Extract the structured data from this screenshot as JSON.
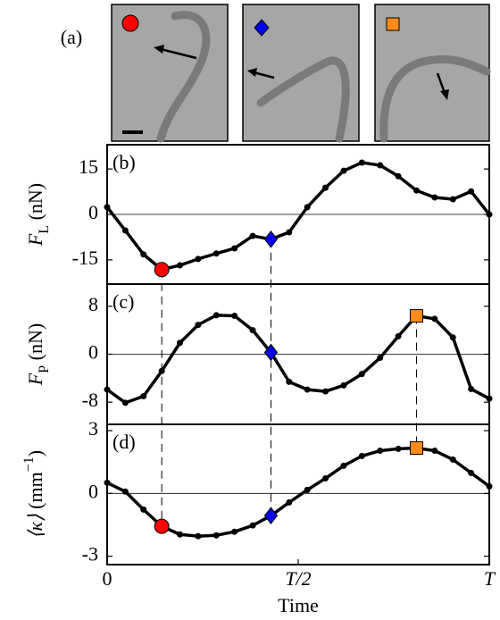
{
  "panel_a": {
    "label": "(a)"
  },
  "chart_data": [
    {
      "type": "line",
      "panel_label": "(b)",
      "color": "#000000",
      "ylabel": [
        {
          "text": "F",
          "style": "italic"
        },
        {
          "text": "L",
          "style": "sub"
        },
        {
          "text": " (nN)",
          "style": "normal"
        }
      ],
      "x": [
        0,
        0.0476,
        0.0952,
        0.1429,
        0.1905,
        0.2381,
        0.2857,
        0.3333,
        0.381,
        0.4286,
        0.4762,
        0.5238,
        0.5714,
        0.619,
        0.6667,
        0.7143,
        0.7619,
        0.8095,
        0.8571,
        0.9048,
        0.9524,
        1
      ],
      "values": [
        2.4,
        -5.3,
        -13.2,
        -18.2,
        -16.8,
        -14.7,
        -12.9,
        -11.2,
        -7.1,
        -8.2,
        -5.9,
        2.4,
        8.8,
        14.4,
        17.1,
        16.2,
        12.6,
        7.9,
        5.6,
        5.0,
        7.6,
        0.0
      ],
      "special_points": [
        {
          "index": 3,
          "marker": "circle",
          "color": "#ff0000"
        },
        {
          "index": 9,
          "marker": "diamond",
          "color": "#0000ee"
        }
      ],
      "xlim": [
        0,
        1
      ],
      "ylim": [
        -23,
        23
      ],
      "yticks": [
        -15,
        0,
        15
      ],
      "hline": 0
    },
    {
      "type": "line",
      "panel_label": "(c)",
      "color": "#000000",
      "ylabel": [
        {
          "text": "F",
          "style": "italic"
        },
        {
          "text": "P",
          "style": "sub"
        },
        {
          "text": " (nN)",
          "style": "normal"
        }
      ],
      "x": [
        0,
        0.0476,
        0.0952,
        0.1429,
        0.1905,
        0.2381,
        0.2857,
        0.3333,
        0.381,
        0.4286,
        0.4762,
        0.5238,
        0.5714,
        0.619,
        0.6667,
        0.7143,
        0.7619,
        0.8095,
        0.8571,
        0.9048,
        0.9524,
        1
      ],
      "values": [
        -5.9,
        -8.1,
        -7.0,
        -2.8,
        1.9,
        4.9,
        6.5,
        6.4,
        4.0,
        0.3,
        -4.6,
        -5.9,
        -6.2,
        -5.2,
        -3.3,
        -0.6,
        3.0,
        6.4,
        5.9,
        2.8,
        -5.8,
        -7.4
      ],
      "special_points": [
        {
          "index": 9,
          "marker": "diamond",
          "color": "#0000ee"
        },
        {
          "index": 17,
          "marker": "square",
          "color": "#ff8c1a"
        }
      ],
      "xlim": [
        0,
        1
      ],
      "ylim": [
        -11.7,
        11.7
      ],
      "yticks": [
        -8,
        0,
        8
      ],
      "hline": 0
    },
    {
      "type": "line",
      "panel_label": "(d)",
      "color": "#000000",
      "ylabel": [
        {
          "text": "⟨κ⟩",
          "style": "italic"
        },
        {
          "text": " (mm",
          "style": "normal"
        },
        {
          "text": "−1",
          "style": "super"
        },
        {
          "text": ")",
          "style": "normal"
        }
      ],
      "xlabel": "Time",
      "x": [
        0,
        0.0476,
        0.0952,
        0.1429,
        0.1905,
        0.2381,
        0.2857,
        0.3333,
        0.381,
        0.4286,
        0.4762,
        0.5238,
        0.5714,
        0.619,
        0.6667,
        0.7143,
        0.7619,
        0.8095,
        0.8571,
        0.9048,
        0.9524,
        1
      ],
      "values": [
        0.51,
        0.09,
        -0.77,
        -1.57,
        -1.96,
        -2.04,
        -2.0,
        -1.83,
        -1.53,
        -1.06,
        -0.43,
        0.17,
        0.72,
        1.32,
        1.79,
        2.04,
        2.13,
        2.17,
        2.04,
        1.62,
        0.98,
        0.34
      ],
      "special_points": [
        {
          "index": 3,
          "marker": "circle",
          "color": "#ff0000"
        },
        {
          "index": 9,
          "marker": "diamond",
          "color": "#0000ee"
        },
        {
          "index": 17,
          "marker": "square",
          "color": "#ff8c1a"
        }
      ],
      "xlim": [
        0,
        1
      ],
      "ylim": [
        -3.4,
        3.3
      ],
      "yticks": [
        -3,
        0,
        3
      ],
      "xticks": [
        0,
        {
          "value": 0.5,
          "label": "T/2"
        },
        {
          "value": 1,
          "label": "T"
        }
      ],
      "hline": 0
    }
  ]
}
